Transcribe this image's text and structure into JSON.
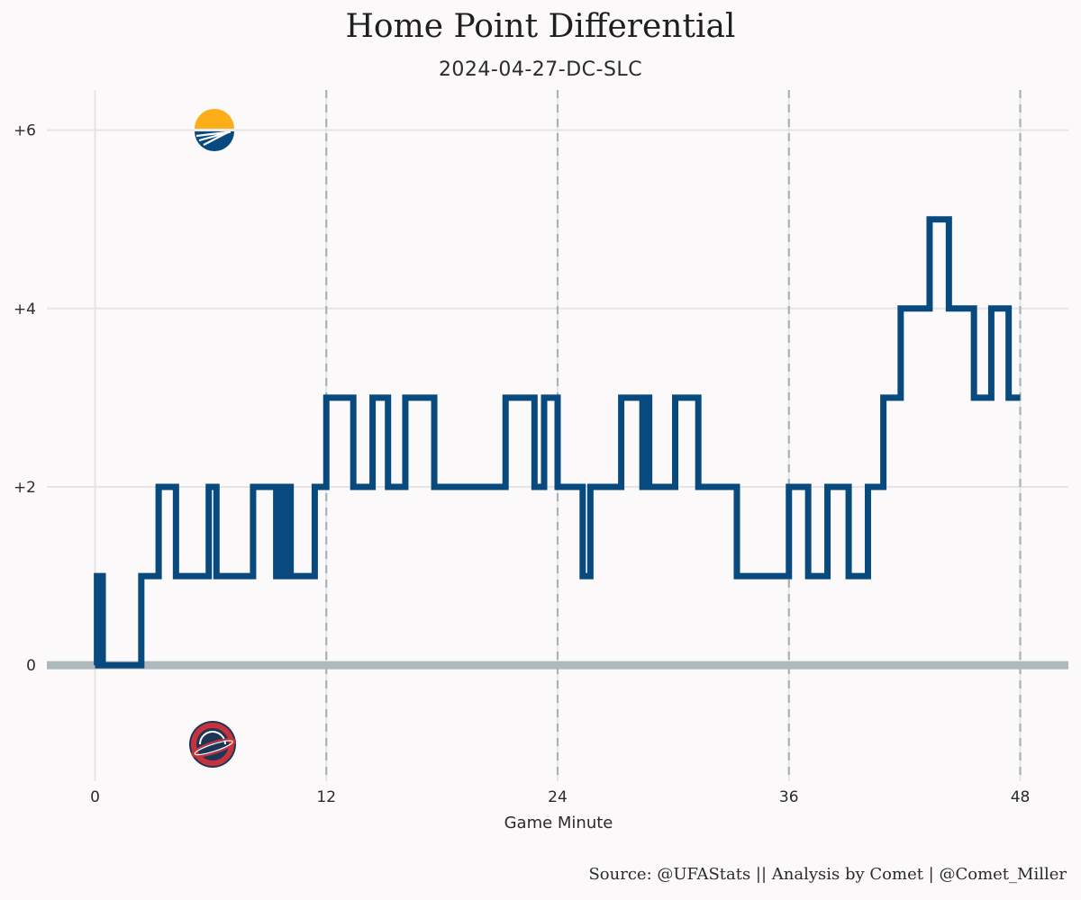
{
  "chart_data": {
    "type": "line",
    "step": true,
    "title": "Home Point Differential",
    "subtitle": "2024-04-27-DC-SLC",
    "xlabel": "Game Minute",
    "ylabel": "",
    "caption": "Source: @UFAStats || Analysis by Comet | @Comet_Miller",
    "xlim": [
      -2.5,
      50.5
    ],
    "ylim": [
      -1.3,
      6.45
    ],
    "x_ticks": [
      0,
      12,
      24,
      36,
      48
    ],
    "x_tick_labels": [
      "0",
      "12",
      "24",
      "36",
      "48"
    ],
    "y_ticks": [
      0,
      2,
      4,
      6
    ],
    "y_tick_labels": [
      "0",
      "+2",
      "+4",
      "+6"
    ],
    "quarter_lines": [
      12,
      24,
      36,
      48
    ],
    "grid": true,
    "zero_line": true,
    "colors": {
      "line": "#084a7e",
      "zero_line": "#aeb9bd",
      "quarter_line": "#a8b3b3",
      "grid": "#e5e5e7",
      "background": "#fbf9fa"
    },
    "series": [
      {
        "x": [
          0,
          0.1,
          0.2,
          0.3,
          0.4,
          2.4,
          3.3,
          4.2,
          5.9,
          6.3,
          8.2,
          9.4,
          9.6,
          9.75,
          9.9,
          10.15,
          11.4,
          12.0,
          13.4,
          14.4,
          15.2,
          16.1,
          17.6,
          21.3,
          22.8,
          23.3,
          24.0,
          25.3,
          25.7,
          27.3,
          28.4,
          28.55,
          28.75,
          30.1,
          31.3,
          33.3,
          34.1,
          36.0,
          37.0,
          38.0,
          39.1,
          40.1,
          40.9,
          41.8,
          43.3,
          44.3,
          45.6,
          46.5,
          47.4
        ],
        "y": [
          0,
          1,
          0,
          1,
          0,
          1,
          2,
          1,
          2,
          1,
          2,
          1,
          2,
          1,
          2,
          1,
          2,
          3,
          2,
          3,
          2,
          3,
          2,
          3,
          2,
          3,
          2,
          1,
          2,
          3,
          2,
          3,
          2,
          3,
          2,
          1,
          1,
          2,
          1,
          2,
          1,
          2,
          3,
          4,
          5,
          4,
          3,
          4,
          3
        ],
        "x_end": 48
      }
    ],
    "team_logos": {
      "home": "Salt Lake Shred logo",
      "away": "DC Breeze logo"
    }
  }
}
